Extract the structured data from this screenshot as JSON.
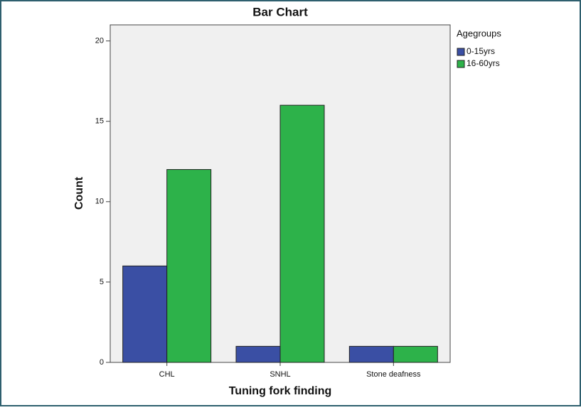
{
  "chart_data": {
    "type": "bar",
    "title": "Bar Chart",
    "x_label": "Tuning fork finding",
    "y_label": "Count",
    "categories": [
      "CHL",
      "SNHL",
      "Stone deafness"
    ],
    "series": [
      {
        "name": "0-15yrs",
        "color": "#3a4fa4",
        "values": [
          6,
          1,
          1
        ]
      },
      {
        "name": "16-60yrs",
        "color": "#2db24a",
        "values": [
          12,
          16,
          1
        ]
      }
    ],
    "legend_title": "Agegroups",
    "legend_position": "right",
    "ylim": [
      0,
      21
    ],
    "yticks": [
      0,
      5,
      10,
      15,
      20
    ]
  }
}
